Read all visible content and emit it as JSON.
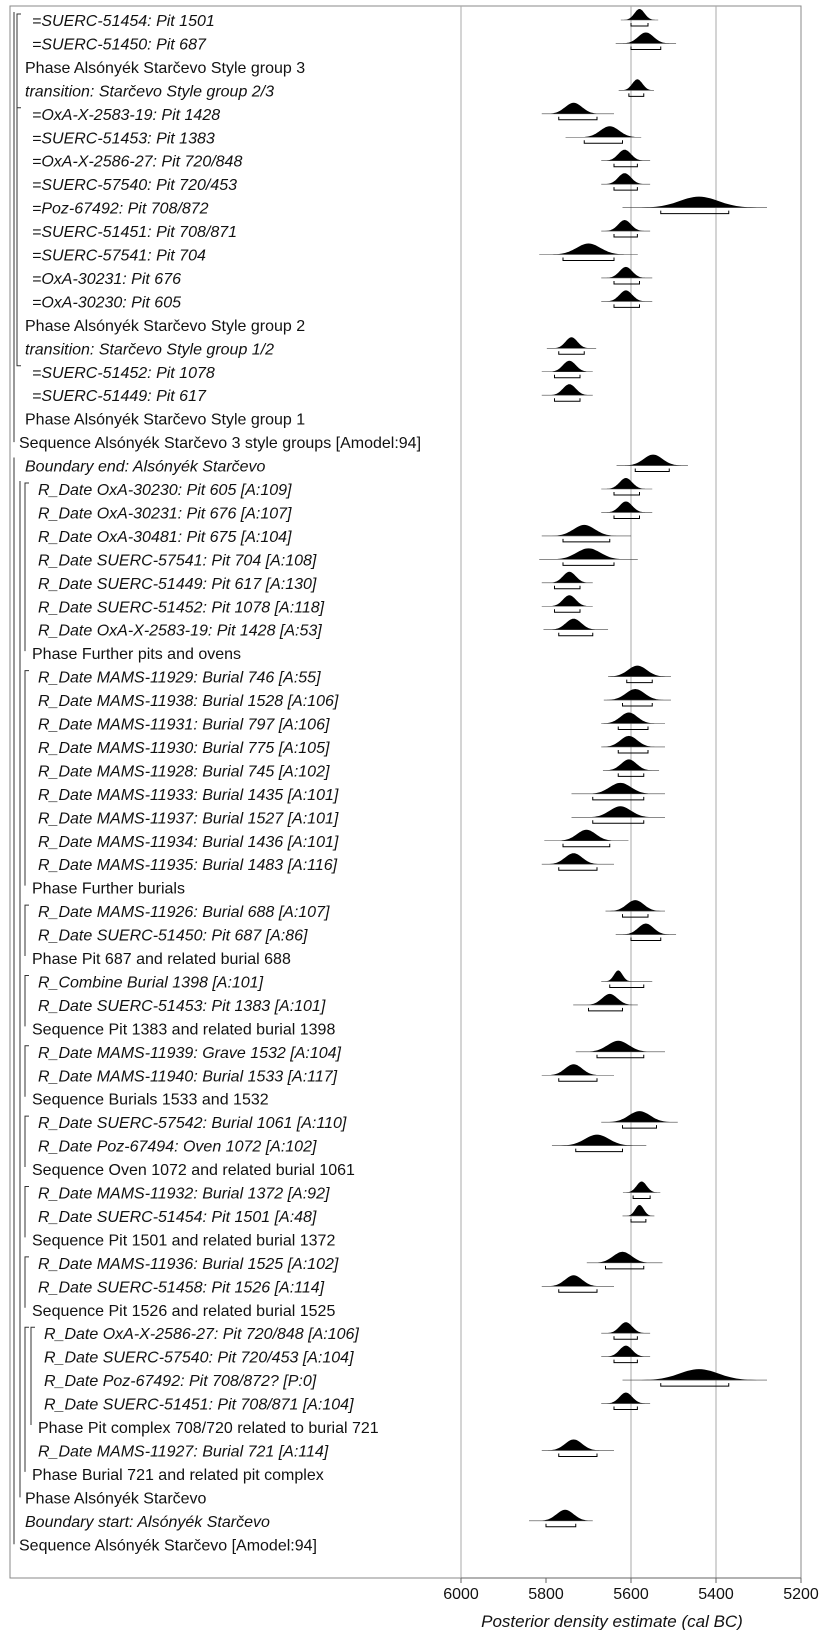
{
  "chart_data": {
    "type": "oxcal_multiplot",
    "xlabel": "Posterior density estimate (cal BC)",
    "xlim": [
      6000,
      5200
    ],
    "x_ticks": [
      6000,
      5800,
      5600,
      5400,
      5200
    ],
    "grid_lines": [
      6000,
      5600,
      5400
    ],
    "rows": [
      {
        "label": "=SUERC-51454: Pit 1501",
        "italic": true,
        "indent": 1,
        "peak": 5580,
        "spread": 12,
        "range": [
          5600,
          5560
        ]
      },
      {
        "label": "=SUERC-51450: Pit 687",
        "italic": true,
        "indent": 1,
        "peak": 5565,
        "spread": 18,
        "range": [
          5600,
          5530
        ]
      },
      {
        "label": "Phase Alsónyék Starčevo Style group 3",
        "italic": false,
        "indent": 0
      },
      {
        "label": "transition: Starčevo Style group 2/3",
        "italic": true,
        "indent": 0,
        "peak": 5585,
        "spread": 12,
        "range": [
          5605,
          5570
        ]
      },
      {
        "label": "=OxA-X-2583-19: Pit 1428",
        "italic": true,
        "indent": 1,
        "peak": 5735,
        "spread": 20,
        "range": [
          5770,
          5680
        ]
      },
      {
        "label": "=SUERC-51453: Pit 1383",
        "italic": true,
        "indent": 1,
        "peak": 5650,
        "spread": 22,
        "range": [
          5710,
          5620
        ]
      },
      {
        "label": "=OxA-X-2586-27: Pit 720/848",
        "italic": true,
        "indent": 1,
        "peak": 5615,
        "spread": 15,
        "range": [
          5640,
          5585
        ]
      },
      {
        "label": "=SUERC-57540: Pit 720/453",
        "italic": true,
        "indent": 1,
        "peak": 5615,
        "spread": 15,
        "range": [
          5640,
          5585
        ]
      },
      {
        "label": "=Poz-67492: Pit 708/872",
        "italic": true,
        "indent": 1,
        "peak": 5440,
        "spread": 45,
        "range": [
          5530,
          5370
        ]
      },
      {
        "label": "=SUERC-51451: Pit 708/871",
        "italic": true,
        "indent": 1,
        "peak": 5615,
        "spread": 15,
        "range": [
          5640,
          5585
        ]
      },
      {
        "label": "=SUERC-57541: Pit 704",
        "italic": true,
        "indent": 1,
        "peak": 5700,
        "spread": 28,
        "range": [
          5760,
          5640
        ]
      },
      {
        "label": "=OxA-30231: Pit 676",
        "italic": true,
        "indent": 1,
        "peak": 5612,
        "spread": 15,
        "range": [
          5640,
          5580
        ]
      },
      {
        "label": "=OxA-30230: Pit 605",
        "italic": true,
        "indent": 1,
        "peak": 5612,
        "spread": 15,
        "range": [
          5640,
          5580
        ]
      },
      {
        "label": "Phase Alsónyék Starčevo Style group 2",
        "italic": false,
        "indent": 0
      },
      {
        "label": "transition: Starčevo Style group 1/2",
        "italic": true,
        "indent": 0,
        "peak": 5740,
        "spread": 14,
        "range": [
          5770,
          5710
        ]
      },
      {
        "label": "=SUERC-51452: Pit 1078",
        "italic": true,
        "indent": 1,
        "peak": 5745,
        "spread": 15,
        "range": [
          5780,
          5720
        ]
      },
      {
        "label": "=SUERC-51449: Pit 617",
        "italic": true,
        "indent": 1,
        "peak": 5745,
        "spread": 15,
        "range": [
          5780,
          5720
        ]
      },
      {
        "label": "Phase Alsónyék Starčevo Style group 1",
        "italic": false,
        "indent": 0
      },
      {
        "label": "Sequence Alsónyék Starčevo 3 style groups [Amodel:94]",
        "italic": false,
        "indent": -1
      },
      {
        "label": "Boundary end: Alsónyék Starčevo",
        "italic": true,
        "indent": 0,
        "peak": 5548,
        "spread": 22,
        "range": [
          5590,
          5510
        ]
      },
      {
        "label": "R_Date OxA-30230: Pit 605 [A:109]",
        "italic": true,
        "indent": 2,
        "peak": 5612,
        "spread": 15,
        "range": [
          5640,
          5580
        ]
      },
      {
        "label": "R_Date OxA-30231: Pit 676 [A:107]",
        "italic": true,
        "indent": 2,
        "peak": 5612,
        "spread": 15,
        "range": [
          5640,
          5580
        ]
      },
      {
        "label": "R_Date OxA-30481: Pit 675 [A:104]",
        "italic": true,
        "indent": 2,
        "peak": 5710,
        "spread": 25,
        "range": [
          5760,
          5650
        ]
      },
      {
        "label": "R_Date SUERC-57541: Pit 704 [A:108]",
        "italic": true,
        "indent": 2,
        "peak": 5700,
        "spread": 28,
        "range": [
          5760,
          5640
        ]
      },
      {
        "label": "R_Date SUERC-51449: Pit 617 [A:130]",
        "italic": true,
        "indent": 2,
        "peak": 5745,
        "spread": 15,
        "range": [
          5780,
          5720
        ]
      },
      {
        "label": "R_Date SUERC-51452: Pit 1078 [A:118]",
        "italic": true,
        "indent": 2,
        "peak": 5745,
        "spread": 15,
        "range": [
          5780,
          5720
        ]
      },
      {
        "label": "R_Date OxA-X-2583-19: Pit 1428 [A:53]",
        "italic": true,
        "indent": 2,
        "peak": 5735,
        "spread": 18,
        "range": [
          5770,
          5690
        ]
      },
      {
        "label": "Phase Further pits and ovens",
        "italic": false,
        "indent": 1
      },
      {
        "label": "R_Date MAMS-11929: Burial 746 [A:55]",
        "italic": true,
        "indent": 2,
        "peak": 5585,
        "spread": 22,
        "range": [
          5610,
          5550
        ]
      },
      {
        "label": "R_Date MAMS-11938: Burial 1528 [A:106]",
        "italic": true,
        "indent": 2,
        "peak": 5590,
        "spread": 22,
        "range": [
          5620,
          5550
        ]
      },
      {
        "label": "R_Date MAMS-11931: Burial 797 [A:106]",
        "italic": true,
        "indent": 2,
        "peak": 5605,
        "spread": 20,
        "range": [
          5630,
          5560
        ]
      },
      {
        "label": "R_Date MAMS-11930: Burial 775 [A:105]",
        "italic": true,
        "indent": 2,
        "peak": 5605,
        "spread": 20,
        "range": [
          5630,
          5560
        ]
      },
      {
        "label": "R_Date MAMS-11928: Burial 745 [A:102]",
        "italic": true,
        "indent": 2,
        "peak": 5605,
        "spread": 18,
        "range": [
          5630,
          5570
        ]
      },
      {
        "label": "R_Date MAMS-11933: Burial 1435 [A:101]",
        "italic": true,
        "indent": 2,
        "peak": 5625,
        "spread": 25,
        "range": [
          5690,
          5570
        ]
      },
      {
        "label": "R_Date MAMS-11937: Burial 1527 [A:101]",
        "italic": true,
        "indent": 2,
        "peak": 5625,
        "spread": 25,
        "range": [
          5690,
          5570
        ]
      },
      {
        "label": "R_Date MAMS-11934: Burial 1436 [A:101]",
        "italic": true,
        "indent": 2,
        "peak": 5705,
        "spread": 22,
        "range": [
          5760,
          5650
        ]
      },
      {
        "label": "R_Date MAMS-11935: Burial 1483 [A:116]",
        "italic": true,
        "indent": 2,
        "peak": 5735,
        "spread": 20,
        "range": [
          5770,
          5680
        ]
      },
      {
        "label": "Phase Further burials",
        "italic": false,
        "indent": 1
      },
      {
        "label": "R_Date MAMS-11926: Burial 688 [A:107]",
        "italic": true,
        "indent": 2,
        "peak": 5590,
        "spread": 20,
        "range": [
          5620,
          5560
        ]
      },
      {
        "label": "R_Date SUERC-51450: Pit 687 [A:86]",
        "italic": true,
        "indent": 2,
        "peak": 5565,
        "spread": 18,
        "range": [
          5600,
          5530
        ]
      },
      {
        "label": "Phase Pit 687 and related burial 688",
        "italic": false,
        "indent": 1
      },
      {
        "label": "R_Combine Burial 1398 [A:101]",
        "italic": true,
        "indent": 2,
        "peak": 5630,
        "spread": 10,
        "range": [
          5650,
          5570
        ]
      },
      {
        "label": "R_Date SUERC-51453: Pit 1383 [A:101]",
        "italic": true,
        "indent": 2,
        "peak": 5650,
        "spread": 18,
        "range": [
          5700,
          5620
        ]
      },
      {
        "label": "Sequence Pit 1383 and related burial 1398",
        "italic": false,
        "indent": 1
      },
      {
        "label": "R_Date MAMS-11939: Grave 1532 [A:104]",
        "italic": true,
        "indent": 2,
        "peak": 5630,
        "spread": 25,
        "range": [
          5680,
          5570
        ]
      },
      {
        "label": "R_Date MAMS-11940: Burial 1533 [A:117]",
        "italic": true,
        "indent": 2,
        "peak": 5735,
        "spread": 20,
        "range": [
          5770,
          5680
        ]
      },
      {
        "label": "Sequence Burials 1533 and 1532",
        "italic": false,
        "indent": 1
      },
      {
        "label": "R_Date SUERC-57542: Burial 1061 [A:110]",
        "italic": true,
        "indent": 2,
        "peak": 5580,
        "spread": 25,
        "range": [
          5620,
          5540
        ]
      },
      {
        "label": "R_Date Poz-67494: Oven 1072 [A:102]",
        "italic": true,
        "indent": 2,
        "peak": 5680,
        "spread": 28,
        "range": [
          5730,
          5620
        ]
      },
      {
        "label": "Sequence Oven 1072 and related burial 1061",
        "italic": false,
        "indent": 1
      },
      {
        "label": "R_Date MAMS-11932: Burial 1372 [A:92]",
        "italic": true,
        "indent": 2,
        "peak": 5575,
        "spread": 12,
        "range": [
          5595,
          5555
        ]
      },
      {
        "label": "R_Date SUERC-51454: Pit 1501 [A:48]",
        "italic": true,
        "indent": 2,
        "peak": 5580,
        "spread": 10,
        "range": [
          5600,
          5565
        ]
      },
      {
        "label": "Sequence Pit 1501 and related burial 1372",
        "italic": false,
        "indent": 1
      },
      {
        "label": "R_Date MAMS-11936: Burial 1525 [A:102]",
        "italic": true,
        "indent": 2,
        "peak": 5620,
        "spread": 22,
        "range": [
          5660,
          5570
        ]
      },
      {
        "label": "R_Date SUERC-51458: Pit 1526 [A:114]",
        "italic": true,
        "indent": 2,
        "peak": 5735,
        "spread": 20,
        "range": [
          5770,
          5680
        ]
      },
      {
        "label": "Sequence Pit 1526 and related burial 1525",
        "italic": false,
        "indent": 1
      },
      {
        "label": "R_Date OxA-X-2586-27: Pit 720/848 [A:106]",
        "italic": true,
        "indent": 3,
        "peak": 5612,
        "spread": 15,
        "range": [
          5640,
          5585
        ]
      },
      {
        "label": "R_Date SUERC-57540: Pit 720/453 [A:104]",
        "italic": true,
        "indent": 3,
        "peak": 5612,
        "spread": 15,
        "range": [
          5640,
          5585
        ]
      },
      {
        "label": "R_Date Poz-67492: Pit 708/872? [P:0]",
        "italic": true,
        "indent": 3,
        "peak": 5440,
        "spread": 45,
        "range": [
          5530,
          5370
        ]
      },
      {
        "label": "R_Date SUERC-51451: Pit 708/871 [A:104]",
        "italic": true,
        "indent": 3,
        "peak": 5612,
        "spread": 15,
        "range": [
          5640,
          5585
        ]
      },
      {
        "label": "Phase Pit complex 708/720 related to burial 721",
        "italic": false,
        "indent": 2
      },
      {
        "label": "R_Date MAMS-11927: Burial 721 [A:114]",
        "italic": true,
        "indent": 2,
        "peak": 5735,
        "spread": 20,
        "range": [
          5770,
          5680
        ]
      },
      {
        "label": "Phase Burial 721 and related pit complex",
        "italic": false,
        "indent": 1
      },
      {
        "label": "Phase Alsónyék Starčevo",
        "italic": false,
        "indent": 0
      },
      {
        "label": "Boundary start: Alsónyék Starčevo",
        "italic": true,
        "indent": 0,
        "peak": 5755,
        "spread": 20,
        "range": [
          5800,
          5730
        ]
      },
      {
        "label": "Sequence Alsónyék Starčevo [Amodel:94]",
        "italic": false,
        "indent": -1
      }
    ]
  }
}
